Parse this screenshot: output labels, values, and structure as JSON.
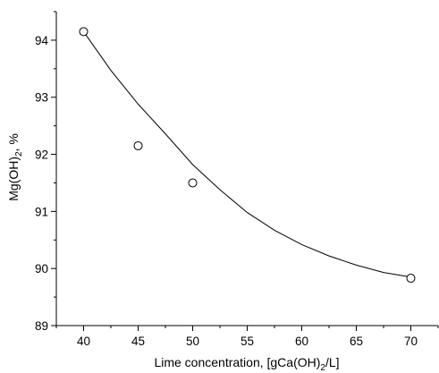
{
  "chart_data": {
    "type": "scatter",
    "title": "",
    "xlabel": {
      "prefix": "Lime concentration, [gCa(OH)",
      "sub": "2",
      "suffix": "/L]"
    },
    "ylabel": {
      "prefix": "Mg(OH)",
      "sub": "2",
      "suffix": ", %"
    },
    "xlim": [
      37.5,
      72.5
    ],
    "ylim": [
      89,
      94.5
    ],
    "x_ticks": [
      40,
      45,
      50,
      55,
      60,
      65,
      70
    ],
    "y_ticks": [
      89,
      90,
      91,
      92,
      93,
      94
    ],
    "grid": false,
    "legend": "none",
    "colors": {
      "axis": "#000000",
      "marker": "#000000",
      "fit": "#000000"
    },
    "points": [
      {
        "x": 40,
        "y": 94.15
      },
      {
        "x": 45,
        "y": 92.15
      },
      {
        "x": 50,
        "y": 91.5
      },
      {
        "x": 70,
        "y": 89.83
      }
    ],
    "fit_curve": [
      {
        "x": 40,
        "y": 94.15
      },
      {
        "x": 42.5,
        "y": 93.47
      },
      {
        "x": 45,
        "y": 92.88
      },
      {
        "x": 47.5,
        "y": 92.36
      },
      {
        "x": 50,
        "y": 91.82
      },
      {
        "x": 52.5,
        "y": 91.38
      },
      {
        "x": 55,
        "y": 90.98
      },
      {
        "x": 57.5,
        "y": 90.67
      },
      {
        "x": 60,
        "y": 90.42
      },
      {
        "x": 62.5,
        "y": 90.22
      },
      {
        "x": 65,
        "y": 90.06
      },
      {
        "x": 67.5,
        "y": 89.93
      },
      {
        "x": 70,
        "y": 89.85
      }
    ]
  }
}
